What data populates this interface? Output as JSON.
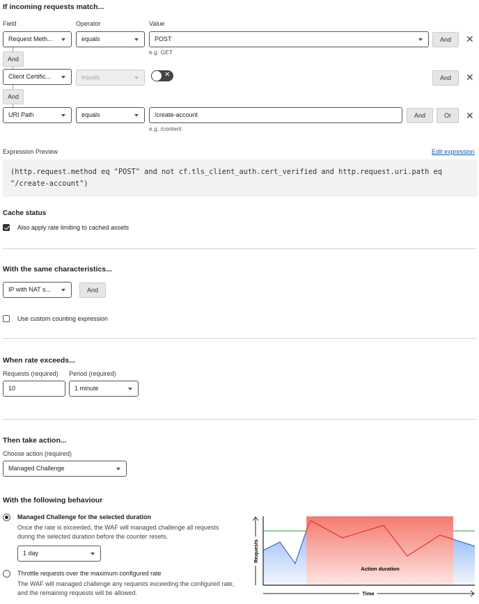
{
  "match": {
    "title": "If incoming requests match...",
    "col_field": "Field",
    "col_operator": "Operator",
    "col_value": "Value",
    "rows": [
      {
        "field": "Request Meth...",
        "operator": "equals",
        "value": "POST",
        "hint": "e.g. GET"
      },
      {
        "field": "Client Certific...",
        "operator": "equals",
        "toggle": false
      },
      {
        "field": "URI Path",
        "operator": "equals",
        "value": "/create-account",
        "hint": "e.g. /content"
      }
    ],
    "and": "And",
    "or": "Or"
  },
  "expression": {
    "label": "Expression Preview",
    "edit": "Edit expression",
    "text": "(http.request.method eq \"POST\" and not cf.tls_client_auth.cert_verified and http.request.uri.path eq \"/create-account\")"
  },
  "cache": {
    "title": "Cache status",
    "checkbox": "Also apply rate limiting to cached assets",
    "checked": true
  },
  "characteristics": {
    "title": "With the same characteristics...",
    "select": "IP with NAT s...",
    "and": "And",
    "custom": "Use custom counting expression",
    "custom_checked": false
  },
  "rate": {
    "title": "When rate exceeds...",
    "requests_label": "Requests (required)",
    "requests_value": "10",
    "period_label": "Period (required)",
    "period_value": "1 minute"
  },
  "action": {
    "title": "Then take action...",
    "choose_label": "Choose action (required)",
    "choose_value": "Managed Challenge"
  },
  "behaviour": {
    "title": "With the following behaviour",
    "opt1_title": "Managed Challenge for the selected duration",
    "opt1_desc": "Once the rate is exceeded, the WAF will managed challenge all requests during the selected duration before the counter resets.",
    "duration": "1 day",
    "opt2_title": "Throttle requests over the maximum configured rate",
    "opt2_desc": "The WAF will managed challenge any requests exceeding the configured rate, and the remaining requests will be allowed.",
    "selected": 1
  },
  "diagram": {
    "ylabel": "Requests",
    "xlabel": "Time",
    "band": "Action duration",
    "colors": {
      "threshold": "#4caf50",
      "under": "#3b73d9",
      "over": "#e53935",
      "band": "#f47a6e"
    }
  }
}
